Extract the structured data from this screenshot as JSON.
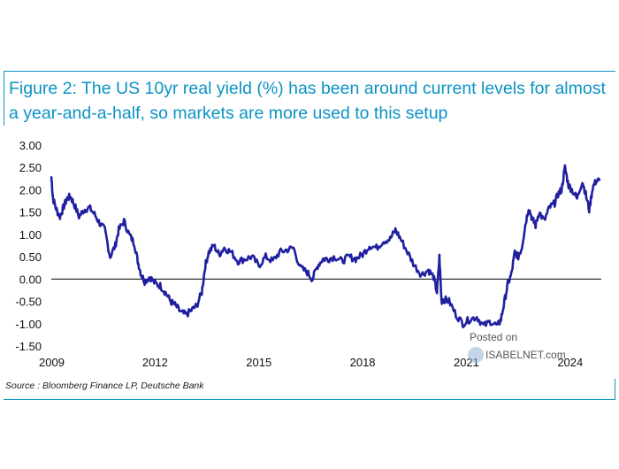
{
  "source_text": "Source : Bloomberg Finance LP, Deutsche Bank",
  "watermark": {
    "line1": "Posted on",
    "line2": "ISABELNET.com"
  },
  "colors": {
    "line": "#1f1fa0",
    "title": "#0b93c5",
    "zero_line": "#000000"
  },
  "chart_data": {
    "type": "line",
    "title": "Figure 2: The US 10yr real yield (%) has been around current levels for almost a year-and-a-half, so markets are more used to this setup",
    "xlabel": "",
    "ylabel": "",
    "xlim": [
      2009.0,
      2024.9
    ],
    "ylim": [
      -1.5,
      3.0
    ],
    "x_ticks": [
      2009,
      2012,
      2015,
      2018,
      2021,
      2024
    ],
    "x_tick_labels": [
      "2009",
      "2012",
      "2015",
      "2018",
      "2021",
      "2024"
    ],
    "y_ticks": [
      -1.5,
      -1.0,
      -0.5,
      0.0,
      0.5,
      1.0,
      1.5,
      2.0,
      2.5,
      3.0
    ],
    "y_tick_labels": [
      "-1.50",
      "-1.00",
      "-0.50",
      "0.00",
      "0.50",
      "1.00",
      "1.50",
      "2.00",
      "2.50",
      "3.00"
    ],
    "series": [
      {
        "name": "US 10yr real yield (%)",
        "x": [
          2009.0,
          2009.05,
          2009.15,
          2009.25,
          2009.35,
          2009.45,
          2009.55,
          2009.65,
          2009.8,
          2009.95,
          2010.1,
          2010.25,
          2010.4,
          2010.55,
          2010.7,
          2010.85,
          2010.95,
          2011.1,
          2011.25,
          2011.4,
          2011.5,
          2011.6,
          2011.7,
          2011.85,
          2012.0,
          2012.15,
          2012.3,
          2012.45,
          2012.6,
          2012.75,
          2012.9,
          2013.05,
          2013.2,
          2013.35,
          2013.45,
          2013.55,
          2013.7,
          2013.85,
          2014.0,
          2014.2,
          2014.4,
          2014.6,
          2014.8,
          2015.0,
          2015.2,
          2015.4,
          2015.6,
          2015.8,
          2016.0,
          2016.2,
          2016.4,
          2016.55,
          2016.7,
          2016.85,
          2017.0,
          2017.2,
          2017.4,
          2017.6,
          2017.8,
          2018.0,
          2018.2,
          2018.4,
          2018.6,
          2018.8,
          2018.95,
          2019.1,
          2019.3,
          2019.5,
          2019.7,
          2019.9,
          2020.05,
          2020.15,
          2020.22,
          2020.28,
          2020.35,
          2020.5,
          2020.7,
          2020.9,
          2021.1,
          2021.3,
          2021.5,
          2021.7,
          2021.9,
          2022.0,
          2022.1,
          2022.2,
          2022.3,
          2022.4,
          2022.5,
          2022.6,
          2022.7,
          2022.8,
          2022.9,
          2023.0,
          2023.1,
          2023.25,
          2023.4,
          2023.55,
          2023.65,
          2023.75,
          2023.85,
          2023.95,
          2024.05,
          2024.2,
          2024.35,
          2024.45,
          2024.55,
          2024.65,
          2024.75,
          2024.85
        ],
        "values": [
          2.3,
          1.8,
          1.55,
          1.4,
          1.6,
          1.8,
          1.85,
          1.7,
          1.4,
          1.55,
          1.6,
          1.45,
          1.25,
          1.1,
          0.5,
          0.75,
          1.1,
          1.3,
          1.0,
          0.8,
          0.4,
          0.1,
          -0.05,
          0.05,
          -0.1,
          -0.15,
          -0.3,
          -0.5,
          -0.6,
          -0.75,
          -0.8,
          -0.7,
          -0.6,
          -0.3,
          0.3,
          0.6,
          0.75,
          0.55,
          0.7,
          0.6,
          0.4,
          0.45,
          0.5,
          0.3,
          0.5,
          0.4,
          0.6,
          0.65,
          0.7,
          0.25,
          0.15,
          0.0,
          0.3,
          0.45,
          0.45,
          0.5,
          0.4,
          0.5,
          0.45,
          0.55,
          0.75,
          0.7,
          0.85,
          0.9,
          1.1,
          0.9,
          0.6,
          0.3,
          0.1,
          0.2,
          0.05,
          -0.3,
          0.5,
          -0.5,
          -0.45,
          -0.5,
          -0.8,
          -1.0,
          -0.9,
          -0.85,
          -1.05,
          -0.95,
          -1.05,
          -0.9,
          -0.5,
          -0.1,
          0.1,
          0.6,
          0.5,
          0.7,
          1.2,
          1.6,
          1.35,
          1.2,
          1.5,
          1.3,
          1.6,
          1.7,
          1.9,
          2.0,
          2.5,
          2.1,
          2.0,
          1.8,
          2.2,
          1.9,
          1.55,
          2.05,
          2.2,
          2.2
        ]
      }
    ]
  }
}
